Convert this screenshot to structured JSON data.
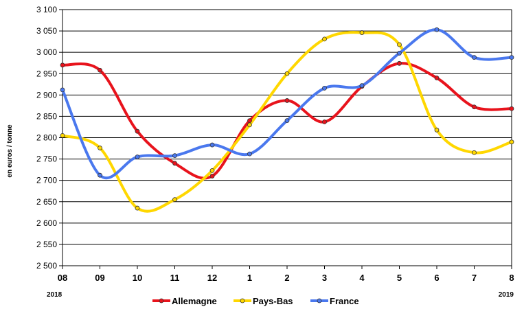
{
  "chart_data": {
    "type": "line",
    "categories": [
      "08",
      "09",
      "10",
      "11",
      "12",
      "1",
      "2",
      "3",
      "4",
      "5",
      "6",
      "7",
      "8"
    ],
    "year_labels": {
      "start": "2018",
      "end": "2019"
    },
    "ylabel": "en euros / tonne",
    "ylim": [
      2500,
      3100
    ],
    "yticks": [
      2500,
      2550,
      2600,
      2650,
      2700,
      2750,
      2800,
      2850,
      2900,
      2950,
      3000,
      3050,
      3100
    ],
    "ytick_labels": [
      "2 500",
      "2 550",
      "2 600",
      "2 650",
      "2 700",
      "2 750",
      "2 800",
      "2 850",
      "2 900",
      "2 950",
      "3 000",
      "3 050",
      "3 100"
    ],
    "grid": true,
    "legend_position": "bottom",
    "series": [
      {
        "name": "Allemagne",
        "color": "#e8131c",
        "values": [
          2970,
          2958,
          2815,
          2740,
          2710,
          2840,
          2887,
          2837,
          2920,
          2974,
          2940,
          2872,
          2868
        ]
      },
      {
        "name": "Pays-Bas",
        "color": "#ffd700",
        "values": [
          2805,
          2776,
          2635,
          2655,
          2723,
          2830,
          2950,
          3031,
          3046,
          3018,
          2818,
          2765,
          2790
        ]
      },
      {
        "name": "France",
        "color": "#4a78ee",
        "values": [
          2912,
          2712,
          2755,
          2758,
          2783,
          2762,
          2840,
          2916,
          2922,
          2998,
          3053,
          2988,
          2988
        ]
      }
    ]
  }
}
